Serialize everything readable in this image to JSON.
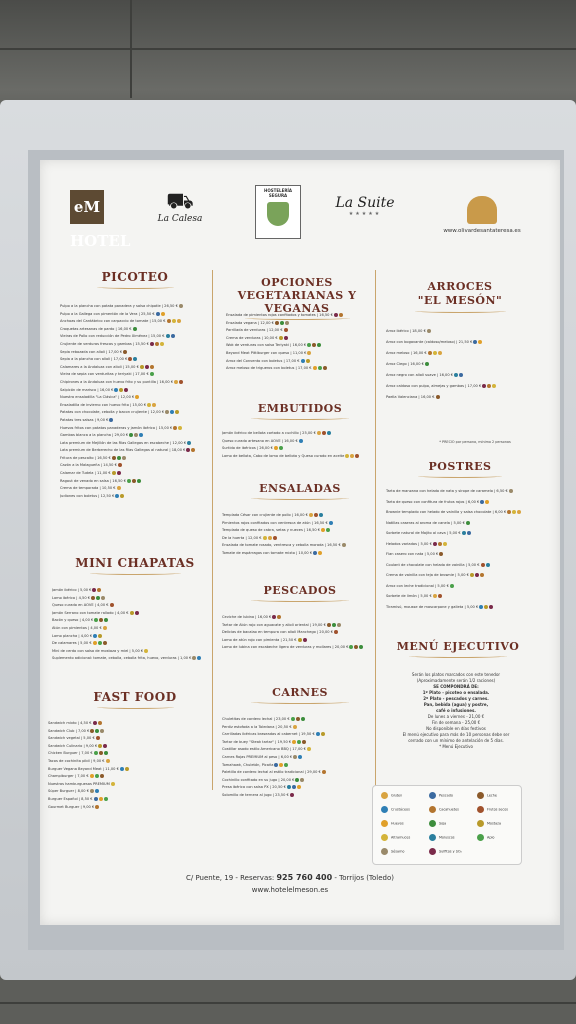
{
  "header": {
    "logos": {
      "em_hotel": "eM HOTEL",
      "la_calesa": "La Calesa",
      "hosteleria": "HOSTELERÍA SEGURA",
      "la_suite": "La Suite",
      "la_suite_stars": "★★★★★",
      "olivar_url": "www.olivardesantateresa.es"
    }
  },
  "sections": {
    "picoteo": {
      "title": "PICOTEO",
      "items": [
        "Pulpo a la plancha con patata panadera y salsa chipotle | 26,50 €",
        "Pulpo a la Gallega con pimentón de la Vera | 25,50 €",
        "Anchoas del Cantábrico con carpaccio de tomate | 15,00 €",
        "Croquetas artesanas de pardo | 16,00 €",
        "Vieiras de Pollo con reducción de Pedro Ximénez | 15,00 €",
        "Crujiente de verduras frescas y gambas | 15,50 €",
        "Sepia rebozada con alioli | 17,00 €",
        "Sepia a la plancha con alioli | 17,00 €",
        "Calamares a la Andaluza con alioli | 15,00 €",
        "Vieira de sepia con verduritas y teriyaki | 17,00 €",
        "Chipirones a la Andaluza con huevo frito y su puntilla | 16,00 €",
        "Salpicón de marisco | 16,00 €",
        "Nuestra ensaladilla \"La Clásica\" | 12,00 €",
        "Ensaladilla de invierno con huevo frito | 15,00 €",
        "Patatas con chocolate, cebolla y bacon crujiente | 12,00 €",
        "Patatas tres salsas | 9,00 €",
        "Huevos fritos con patatas panaderas y jamón ibérico | 15,00 €",
        "Gambas blanca a la plancha | 29,00 €",
        "Lata premium de Mejillón de las Rías Gallegas en escabeche | 12,00 €",
        "Lata premium de Berberecho de las Rías Gallegas al natural | 18,00 €",
        "Fritura de pescaíto | 16,50 €",
        "Cazón a la Malagueña | 14,50 €",
        "Calamar de Tudela | 11,00 €",
        "Ragout de venado en salsa | 16,50 €",
        "Crema de temporada | 10,50 €",
        "Judiones con boletus | 12,50 €"
      ]
    },
    "mini_chapatas": {
      "title": "MINI CHAPATAS",
      "items": [
        "Jamón ibérico | 5,00 €",
        "Lomo ibérico | 4,50 €",
        "Queso curado en AOVE | 4,00 €",
        "Jamón Serrano con tomate rallado | 4,00 €",
        "Bacón y queso | 4,00 €",
        "Atún con pimientos | 4,00 €",
        "Lomo plancha | 4,00 €",
        "De calamares | 5,00 €",
        "Mini de cerdo con salsa de mostaza y miel | 5,00 €",
        "Suplemento adicional: tomate, cebolla, cebolla frita, huevo, verduras | 1,00 €"
      ]
    },
    "fast_food": {
      "title": "FAST FOOD",
      "items": [
        "Sandwich mixto | 4,50 €",
        "Sandwich Club | 7,00 €",
        "Sandwich vegetal | 5,00 €",
        "Sandwich Culinario | 9,00 €",
        "Chicken Burguer | 7,00 €",
        "Tacos de cochinita pibil | 9,00 €",
        "Burguer Vegana Beyond Meat | 11,00 €",
        "Champiburger | 7,00 €",
        "Nuestras hamburguesas PREMIUM",
        "Súper Burguer | 8,00 €",
        "Burguer Español | 8,50 €",
        "Gourmet Burguer | 9,00 €"
      ]
    },
    "opciones": {
      "title_1": "OPCIONES",
      "title_2": "VEGETARIANAS Y VEGANAS",
      "items": [
        "Ensalada de pimientos rojos confitados y tomates | 16,50 €",
        "Ensalada vegana | 12,00 €",
        "Parrillada de verduras | 12,00 €",
        "Crema de verduras | 10,00 €",
        "Wok de verduras con salsa Teriyaki | 16,00 €",
        "Beyond Meat Pittlburger con queso | 11,00 €",
        "Arroz del Convento con boletus | 17,00 €",
        "Arroz meloso de trigueros con boletus | 17,00 €"
      ]
    },
    "embutidos": {
      "title": "EMBUTIDOS",
      "items": [
        "Jamón ibérico de bellota cortado a cuchillo | 25,00 €",
        "Queso curado artesano en AOVE | 16,00 €",
        "Surtido de ibéricos | 26,00 €",
        "Lomo de bellota, Cabo de lomo de bellota y Queso curado en aceite"
      ]
    },
    "ensaladas": {
      "title": "ENSALADAS",
      "items": [
        "Templada César con crujiente de pollo | 16,00 €",
        "Pimientos rojos confitados con ventresca de atún | 16,50 €",
        "Templada de queso de cabra, setas y nueces | 16,50 €",
        "De la huerta | 12,00 €",
        "Ensalada de tomate rosado, ventresca y cebolla morada | 16,50 €",
        "Tomate de espárragos con tomate mixto | 10,00 €"
      ]
    },
    "pescados": {
      "title": "PESCADOS",
      "items": [
        "Ceviche de lubina | 16,00 €",
        "Tartar de Atún rojo con aguacate y alioli oriental | 19,00 €",
        "Delicias de bacalao en tempura con alioli Manchego | 20,00 €",
        "Lomo de atún rojo con pimienta | 21,50 €",
        "Lomo de lubina con escabeche ligero de verduras y mollares | 20,00 €"
      ]
    },
    "carnes": {
      "title": "CARNES",
      "items": [
        "Chuletitas de cordero lechal | 23,00 €",
        "Perdiz estofada a la Toledana | 20,50 €",
        "Carrilladas ibéricas braseadas al cabernet | 19,50 €",
        "Tartar de buey \"Steak tartar\" | 19,50 €",
        "Costillar asado estilo Americano BBQ | 17,00 €",
        "Carnes Rojas PREMIUM al peso | 6,00 €",
        "Tomahawk, Chuletón, Picaña",
        "Paletilla de cordero lechal al estilo tradicional | 29,00 €",
        "Cochinillo confitado en su jugo | 20,00 €",
        "Presa ibérica con salsa PX | 20,50 €",
        "Solomillo de ternera al jugo | 23,50 €"
      ]
    },
    "arroces": {
      "title_1": "ARROCES",
      "title_2": "\"EL MESÓN\"",
      "items": [
        "Arroz ibérico | 18,00 €",
        "Arroz con bogavante (caldoso/meloso) | 21,50 €",
        "Arroz meloso | 16,00 €",
        "Arroz Ciego | 16,00 €",
        "Arroz negro con alioli suave | 16,00 €",
        "Arroz caldoso con pulpo, almejas y gambas | 17,00 €",
        "Paella Valenciana | 16,00 €"
      ],
      "note": "* PRECIO por persona, mínimo 2 personas"
    },
    "postres": {
      "title": "POSTRES",
      "items": [
        "Tarta de manzana con helado de nata y sirope de caramelo | 6,50 €",
        "Tarta de queso con confitura de frutos rojos | 6,00 €",
        "Brownie templado con helado de vainilla y salsa chocolate | 6,00 €",
        "Natillas caseras al aroma de canela | 5,00 €",
        "Sorbete natural de Mojito al cava | 5,00 €",
        "Helados variados | 5,00 €",
        "Flan casero con nata | 5,00 €",
        "Coulant de chocolate con helado de vainilla | 5,00 €",
        "Crema de vainilla con teja de brownie | 5,00 €",
        "Arroz con leche tradicional | 5,00 €",
        "Sorbete de limón | 5,00 €",
        "Tiramisú, mousse de mascarpone y galleta | 5,00 €"
      ]
    },
    "menu_ejecutivo": {
      "title": "MENÚ EJECUTIVO",
      "lines": [
        "Serán los platos marcados con este tenedor",
        "(Aproximadamente serán 1/2 raciones)",
        "SE COMPONDRÁ DE:",
        "1º Plato - picoteo o ensalada.",
        "2º Plato - pescados y carnes.",
        "Pan, bebida (agua) y postre,",
        "café o infusiones.",
        "De lunes a viernes - 21,00 €",
        "Fin de semana - 25,00 €",
        "No disponible en días festivos",
        "El menú ejecutivo para más de 10 personas debe ser",
        "cerrado con un mínimo de antelación de 5 días.",
        "* Menú Ejecutivo"
      ]
    }
  },
  "legend": [
    {
      "label": "Gluten",
      "color": "#d9a441"
    },
    {
      "label": "Pescado",
      "color": "#3b6aa0"
    },
    {
      "label": "Leche",
      "color": "#8b5a2b"
    },
    {
      "label": "Crustáceos",
      "color": "#2f7fb5"
    },
    {
      "label": "Cacahuetes",
      "color": "#b3752f"
    },
    {
      "label": "Frutos secos",
      "color": "#a0522d"
    },
    {
      "label": "Huevos",
      "color": "#e0a02a"
    },
    {
      "label": "Soja",
      "color": "#3c8d3c"
    },
    {
      "label": "Mostaza",
      "color": "#b89a2a"
    },
    {
      "label": "Altramuces",
      "color": "#d4b43a"
    },
    {
      "label": "Moluscos",
      "color": "#2a7f9e"
    },
    {
      "label": "Apio",
      "color": "#4aa04a"
    },
    {
      "label": "Sésamo",
      "color": "#9a8a6a"
    },
    {
      "label": "Sulfitos y SO₂",
      "color": "#7a2a4a"
    }
  ],
  "footer": {
    "line1_a": "C/ Puente, 19 - Reservas:",
    "line1_phone": "925 760 400",
    "line1_b": "- Torrijos (Toledo)",
    "line2": "www.hotelelmeson.es"
  },
  "colors": {
    "section_title": "#6b2f24",
    "gold_rule": "#c9a56d"
  }
}
